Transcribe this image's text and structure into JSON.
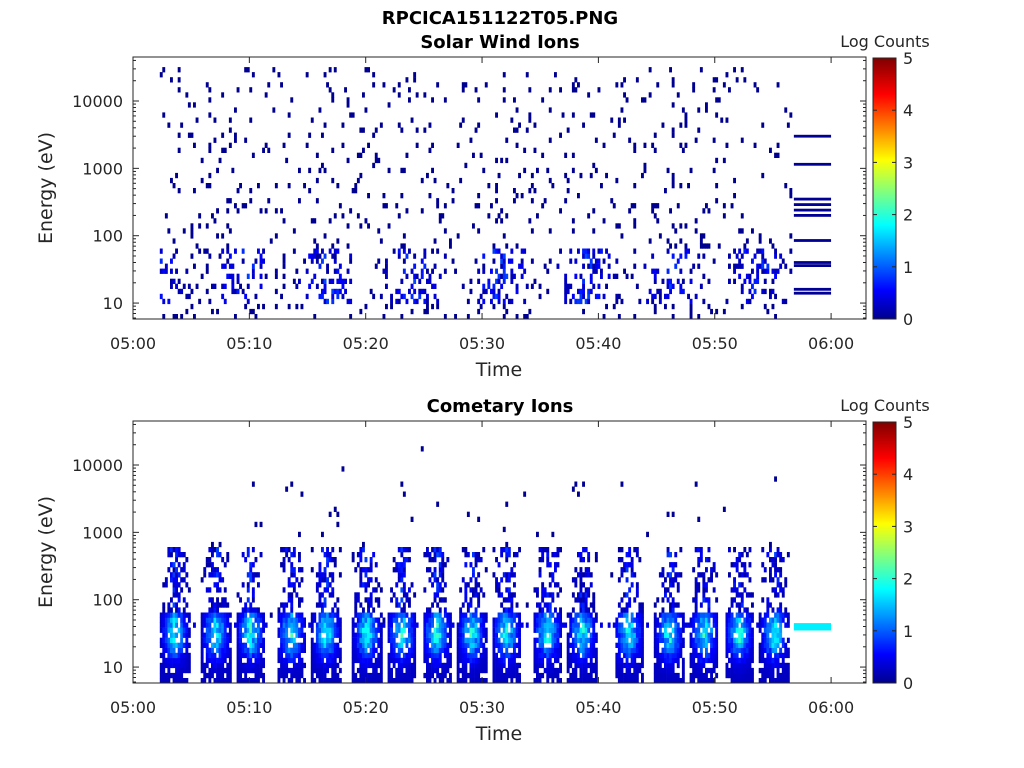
{
  "figure": {
    "title": "RPCICA151122T05.PNG"
  },
  "chart_data": [
    {
      "type": "heatmap",
      "title": "Solar Wind Ions",
      "xlabel": "Time",
      "ylabel": "Energy (eV)",
      "xticks": [
        "05:00",
        "05:10",
        "05:20",
        "05:30",
        "05:40",
        "05:50",
        "06:00"
      ],
      "xlim": [
        0,
        63
      ],
      "yscale": "log",
      "ylim": [
        5.8,
        45000
      ],
      "yticks": [
        10,
        100,
        1000,
        10000
      ],
      "ytick_labels": [
        "10",
        "100",
        "1000",
        "10000"
      ],
      "colorbar": {
        "label": "Log Counts",
        "range": [
          0,
          5
        ],
        "ticks": [
          "0",
          "1",
          "2",
          "3",
          "4",
          "5"
        ],
        "colormap": "jet"
      },
      "data_time_range_min": [
        2.3,
        56.5
      ],
      "description_series": [
        {
          "name": "scattered counts",
          "energy_range_eV": [
            6,
            30000
          ],
          "log_counts": 0.1
        },
        {
          "name": "low energy band",
          "energy_range_eV": [
            10,
            45
          ],
          "log_counts_max": 1.2
        }
      ],
      "end_segment": {
        "time_range_min": [
          56.8,
          60.0
        ],
        "lines_energy_eV": [
          3000,
          1150,
          350,
          290,
          240,
          200,
          85,
          40,
          36,
          16,
          14
        ],
        "log_counts": 0.1
      },
      "grid": false,
      "legend": "colorbar-right"
    },
    {
      "type": "heatmap",
      "title": "Cometary Ions",
      "xlabel": "Time",
      "ylabel": "Energy (eV)",
      "xticks": [
        "05:00",
        "05:10",
        "05:20",
        "05:30",
        "05:40",
        "05:50",
        "06:00"
      ],
      "xlim": [
        0,
        63
      ],
      "yscale": "log",
      "ylim": [
        5.8,
        45000
      ],
      "yticks": [
        10,
        100,
        1000,
        10000
      ],
      "ytick_labels": [
        "10",
        "100",
        "1000",
        "10000"
      ],
      "colorbar": {
        "label": "Log Counts",
        "range": [
          0,
          5
        ],
        "ticks": [
          "0",
          "1",
          "2",
          "3",
          "4",
          "5"
        ],
        "colormap": "jet"
      },
      "data_time_range_min": [
        2.3,
        56.5
      ],
      "bursts_time_min": [
        3.5,
        7.0,
        10.0,
        13.5,
        16.5,
        20.0,
        23.0,
        26.0,
        29.0,
        32.0,
        35.5,
        38.5,
        42.5,
        46.0,
        49.0,
        52.0,
        55.0
      ],
      "peak_energy_eV": 30,
      "peak_log_counts": 2.2,
      "end_segment": {
        "time_range_min": [
          56.8,
          60.0
        ],
        "energy_range_eV": [
          35,
          45
        ],
        "log_counts": 1.8
      },
      "grid": false,
      "legend": "colorbar-right"
    }
  ]
}
